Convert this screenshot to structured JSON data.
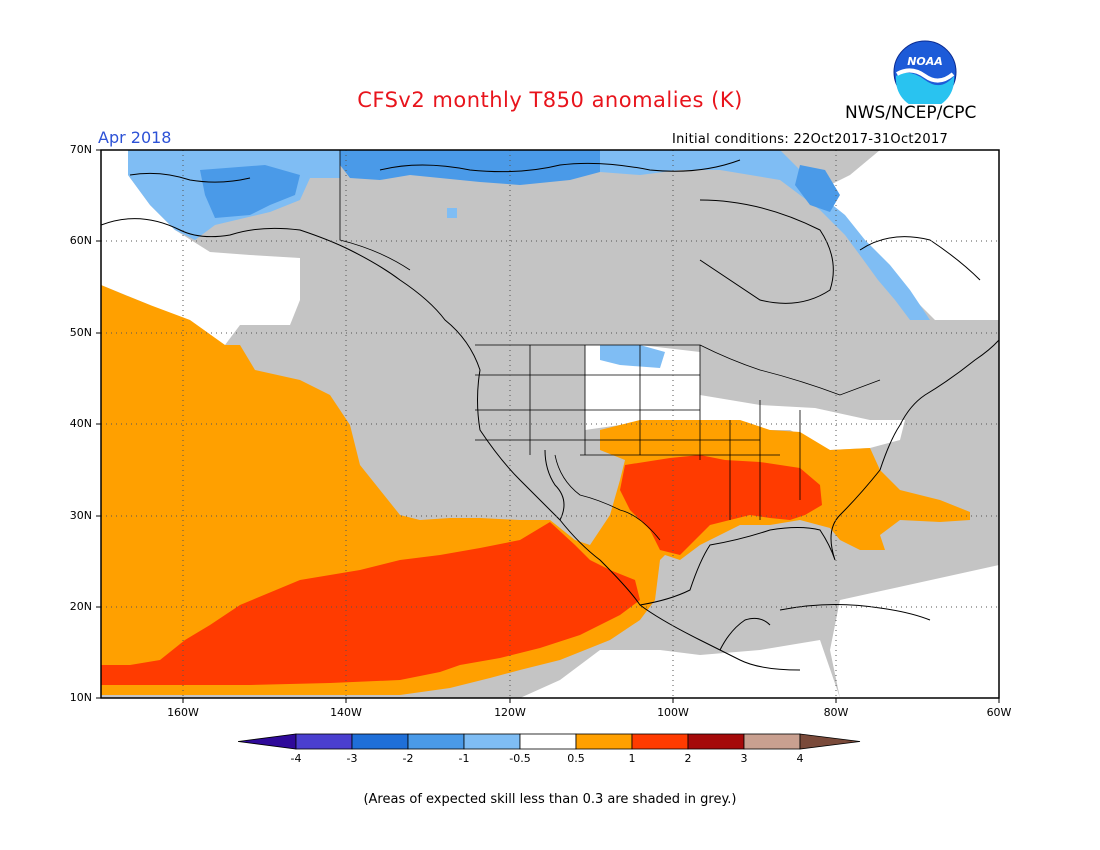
{
  "header": {
    "title": "CFSv2 monthly T850 anomalies (K)",
    "agency": "NWS/NCEP/CPC",
    "logo_text": "NOAA",
    "month": "Apr 2018",
    "initial_conditions": "Initial conditions: 22Oct2017-31Oct2017"
  },
  "map": {
    "lat_labels": [
      "70N",
      "60N",
      "50N",
      "40N",
      "30N",
      "20N",
      "10N"
    ],
    "lon_labels": [
      "160W",
      "140W",
      "120W",
      "100W",
      "80W",
      "60W"
    ],
    "grey_color": "#c4c4c4"
  },
  "colorbar": {
    "labels": [
      "-4",
      "-3",
      "-2",
      "-1",
      "-0.5",
      "0.5",
      "1",
      "2",
      "3",
      "4"
    ],
    "colors": [
      "#2f0a9a",
      "#4a3fcf",
      "#1f6fd8",
      "#4a9ae8",
      "#7fbdf4",
      "#ffffff",
      "#ffa000",
      "#ff3b00",
      "#a50a0a",
      "#c9a090",
      "#7a4a3a"
    ]
  },
  "footnote": "(Areas of expected skill less than 0.3 are shaded in grey.)"
}
